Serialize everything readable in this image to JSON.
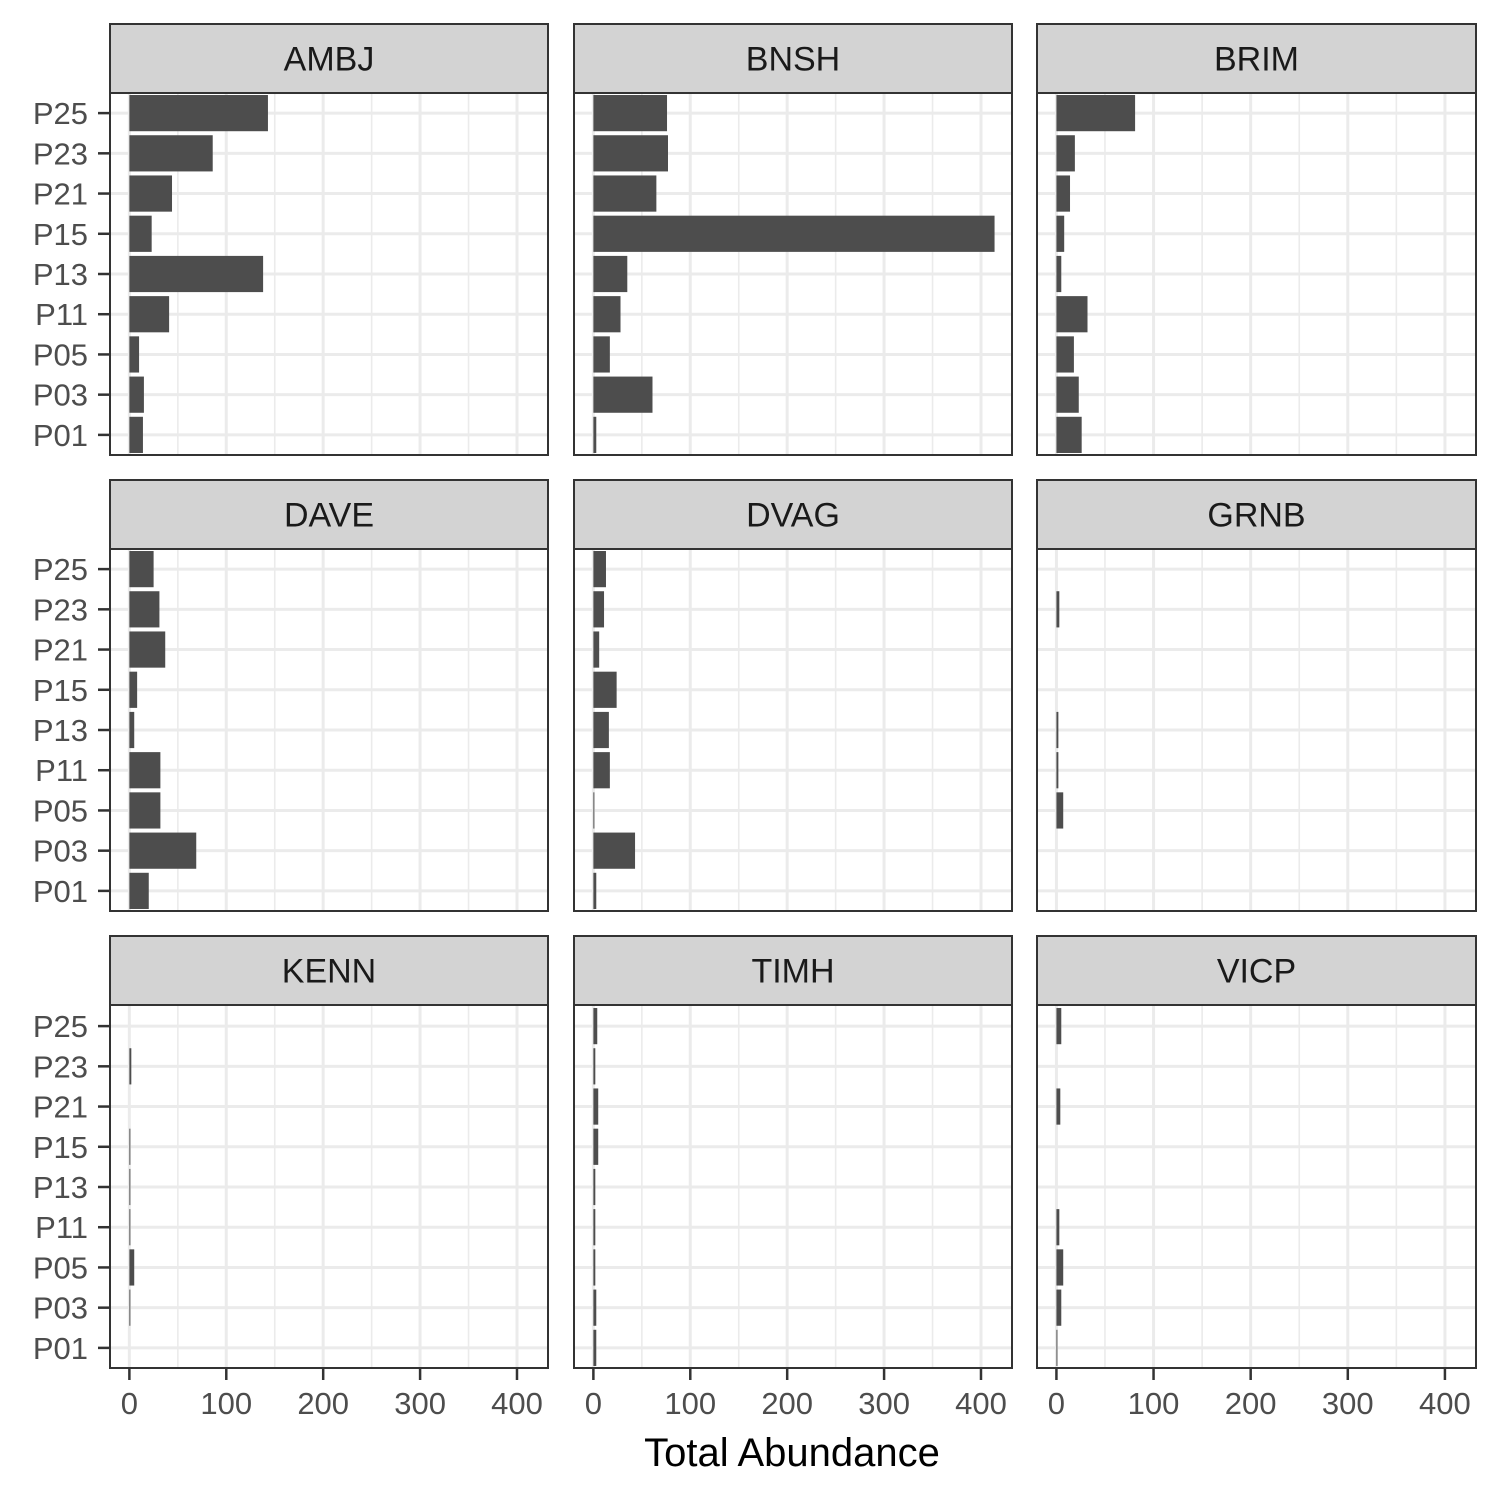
{
  "chart_data": {
    "type": "bar",
    "orientation": "horizontal",
    "layout": "facet_wrap 3x3",
    "xlabel": "Total Abundance",
    "ylabel": "",
    "xlim": [
      -20,
      432
    ],
    "x_ticks": [
      0,
      100,
      200,
      300,
      400
    ],
    "x_tick_labels": [
      "0",
      "100",
      "200",
      "300",
      "400"
    ],
    "grid": true,
    "colors": {
      "bar": "#4d4d4d",
      "strip_fill": "#d3d3d3",
      "grid": "#ebebeb",
      "border": "#333333"
    },
    "categories": [
      "P01",
      "P03",
      "P05",
      "P11",
      "P13",
      "P15",
      "P21",
      "P23",
      "P25"
    ],
    "panels": [
      {
        "name": "AMBJ",
        "values": [
          14,
          15,
          10,
          41,
          138,
          23,
          44,
          86,
          143
        ]
      },
      {
        "name": "BNSH",
        "values": [
          3,
          61,
          17,
          28,
          35,
          414,
          65,
          77,
          76
        ]
      },
      {
        "name": "BRIM",
        "values": [
          26,
          23,
          18,
          32,
          5,
          8,
          14,
          19,
          81
        ]
      },
      {
        "name": "DAVE",
        "values": [
          20,
          69,
          32,
          32,
          5,
          8,
          37,
          31,
          25
        ]
      },
      {
        "name": "DVAG",
        "values": [
          3,
          43,
          1,
          17,
          16,
          24,
          6,
          11,
          13
        ]
      },
      {
        "name": "GRNB",
        "values": [
          0,
          0,
          7,
          2,
          2,
          0,
          0,
          3,
          0
        ]
      },
      {
        "name": "KENN",
        "values": [
          0,
          1,
          5,
          1,
          1,
          1,
          0,
          2,
          0
        ]
      },
      {
        "name": "TIMH",
        "values": [
          3,
          3,
          2,
          2,
          2,
          5,
          5,
          2,
          4
        ]
      },
      {
        "name": "VICP",
        "values": [
          1,
          5,
          7,
          3,
          0,
          0,
          4,
          0,
          5
        ]
      }
    ]
  }
}
